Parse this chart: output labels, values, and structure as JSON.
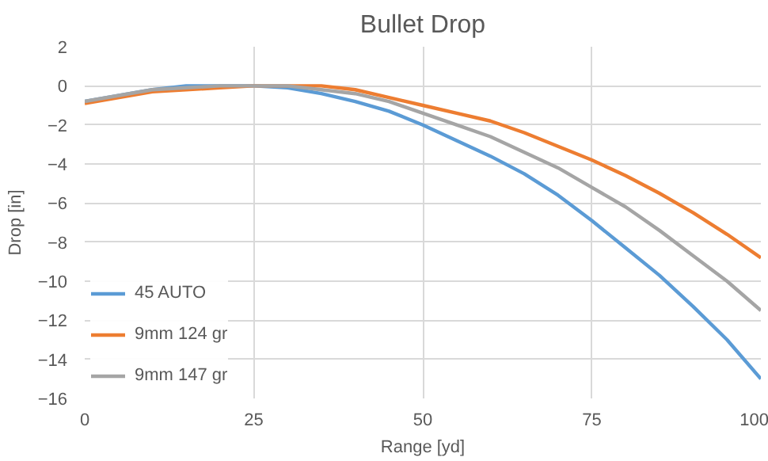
{
  "chart_data": {
    "type": "line",
    "title": "Bullet Drop",
    "xlabel": "Range [yd]",
    "ylabel": "Drop [in]",
    "x": [
      0,
      10,
      15,
      20,
      25,
      30,
      35,
      40,
      45,
      50,
      55,
      60,
      65,
      70,
      75,
      80,
      85,
      90,
      95,
      100
    ],
    "series": [
      {
        "name": "45 AUTO",
        "color": "#5b9bd5",
        "values": [
          -0.8,
          -0.2,
          0,
          0,
          0,
          -0.1,
          -0.4,
          -0.8,
          -1.3,
          -2.0,
          -2.8,
          -3.6,
          -4.5,
          -5.6,
          -6.9,
          -8.3,
          -9.7,
          -11.3,
          -13.0,
          -15.0
        ]
      },
      {
        "name": "9mm 124 gr",
        "color": "#ed7d31",
        "values": [
          -0.9,
          -0.3,
          -0.2,
          -0.1,
          0,
          0,
          0,
          -0.2,
          -0.6,
          -1.0,
          -1.4,
          -1.8,
          -2.4,
          -3.1,
          -3.8,
          -4.6,
          -5.5,
          -6.5,
          -7.6,
          -8.8
        ]
      },
      {
        "name": "9mm 147 gr",
        "color": "#a5a5a5",
        "values": [
          -0.8,
          -0.2,
          -0.1,
          0,
          0,
          0,
          -0.2,
          -0.4,
          -0.8,
          -1.4,
          -2.0,
          -2.6,
          -3.4,
          -4.2,
          -5.2,
          -6.2,
          -7.4,
          -8.7,
          -10.0,
          -11.5
        ]
      }
    ],
    "xlim": [
      0,
      100
    ],
    "ylim": [
      -16,
      2
    ],
    "xticks": [
      0,
      25,
      50,
      75,
      100
    ],
    "yticks": [
      -16,
      -14,
      -12,
      -10,
      -8,
      -6,
      -4,
      -2,
      0,
      2
    ],
    "grid": true,
    "legend": "bottom left",
    "marker": "none",
    "line_style": "solid"
  }
}
